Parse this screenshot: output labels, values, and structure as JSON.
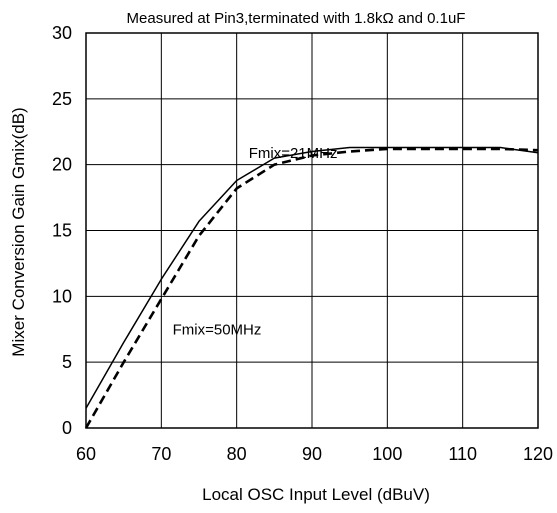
{
  "chart_data": {
    "type": "line",
    "title": "Measured at Pin3,terminated with 1.8kΩ and 0.1uF",
    "xlabel": "Local OSC Input Level (dBuV)",
    "ylabel": "Mixer Conversion Gain Gmix(dB)",
    "xlim": [
      60,
      120
    ],
    "ylim": [
      0,
      30
    ],
    "xticks": [
      60,
      70,
      80,
      90,
      100,
      110,
      120
    ],
    "yticks": [
      0,
      5,
      10,
      15,
      20,
      25,
      30
    ],
    "grid": true,
    "series": [
      {
        "name": "Fmix=21MHz",
        "line_style": "solid",
        "color": "#000000",
        "x": [
          60,
          65,
          70,
          75,
          80,
          85,
          90,
          95,
          100,
          105,
          110,
          115,
          120
        ],
        "y": [
          1.5,
          6.5,
          11.3,
          15.7,
          18.8,
          20.5,
          21.0,
          21.3,
          21.3,
          21.3,
          21.3,
          21.3,
          20.9
        ]
      },
      {
        "name": "Fmix=50MHz",
        "line_style": "dashed",
        "color": "#000000",
        "x": [
          60,
          65,
          70,
          75,
          80,
          85,
          90,
          95,
          100,
          105,
          110,
          115,
          120
        ],
        "y": [
          0.0,
          5.0,
          9.8,
          14.6,
          18.2,
          20.0,
          20.7,
          21.0,
          21.2,
          21.2,
          21.2,
          21.2,
          21.1
        ]
      }
    ],
    "annotations": [
      {
        "text": "Fmix=21MHz",
        "x": 81.6,
        "y": 20.9
      },
      {
        "text": "Fmix=50MHz",
        "x": 71.5,
        "y": 7.5
      }
    ]
  }
}
